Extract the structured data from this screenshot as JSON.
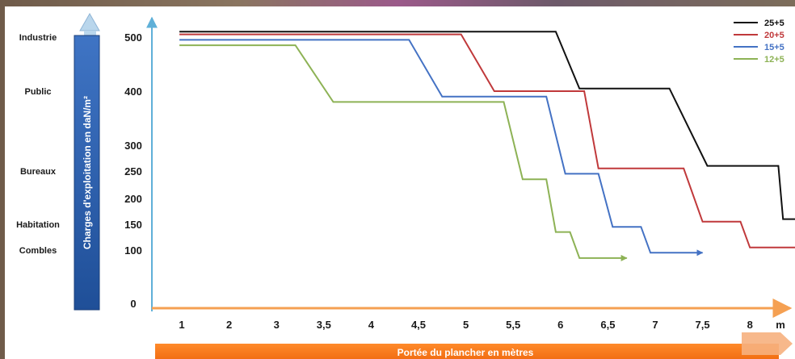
{
  "chart_data": {
    "type": "line",
    "ylabel": "Charges d'exploitation en daN/m²",
    "xlabel": "Portée du plancher en mètres",
    "x_unit": "m",
    "x_ticks": [
      "1",
      "2",
      "3",
      "3,5",
      "4",
      "4,5",
      "5",
      "5,5",
      "6",
      "6,5",
      "7",
      "7,5",
      "8"
    ],
    "y_ticks": [
      0,
      100,
      150,
      200,
      250,
      300,
      400,
      500
    ],
    "categories": [
      {
        "label": "Industrie",
        "value": 500
      },
      {
        "label": "Public",
        "value": 400
      },
      {
        "label": "Bureaux",
        "value": 250
      },
      {
        "label": "Habitation",
        "value": 150
      },
      {
        "label": "Combles",
        "value": 100
      }
    ],
    "legend_position": "top-right",
    "series": [
      {
        "name": "25+5",
        "color": "#111111",
        "points": [
          [
            0.95,
            510
          ],
          [
            5.95,
            510
          ],
          [
            6.2,
            405
          ],
          [
            7.15,
            405
          ],
          [
            7.55,
            260
          ],
          [
            8.3,
            260
          ],
          [
            8.35,
            160
          ],
          [
            8.6,
            160
          ]
        ]
      },
      {
        "name": "20+5",
        "color": "#c0393b",
        "points": [
          [
            0.95,
            505
          ],
          [
            4.95,
            505
          ],
          [
            5.3,
            400
          ],
          [
            6.25,
            400
          ],
          [
            6.4,
            255
          ],
          [
            7.3,
            255
          ],
          [
            7.5,
            155
          ],
          [
            7.9,
            155
          ],
          [
            8.0,
            105
          ],
          [
            8.75,
            105
          ]
        ]
      },
      {
        "name": "15+5",
        "color": "#4472c4",
        "points": [
          [
            0.95,
            495
          ],
          [
            4.4,
            495
          ],
          [
            4.75,
            390
          ],
          [
            5.85,
            390
          ],
          [
            6.05,
            245
          ],
          [
            6.4,
            245
          ],
          [
            6.55,
            145
          ],
          [
            6.85,
            145
          ],
          [
            6.95,
            95
          ],
          [
            7.5,
            95
          ]
        ]
      },
      {
        "name": "12+5",
        "color": "#8db255",
        "points": [
          [
            0.95,
            485
          ],
          [
            3.2,
            485
          ],
          [
            3.6,
            380
          ],
          [
            5.4,
            380
          ],
          [
            5.6,
            235
          ],
          [
            5.85,
            235
          ],
          [
            5.95,
            135
          ],
          [
            6.1,
            135
          ],
          [
            6.2,
            85
          ],
          [
            6.7,
            85
          ]
        ]
      }
    ]
  }
}
